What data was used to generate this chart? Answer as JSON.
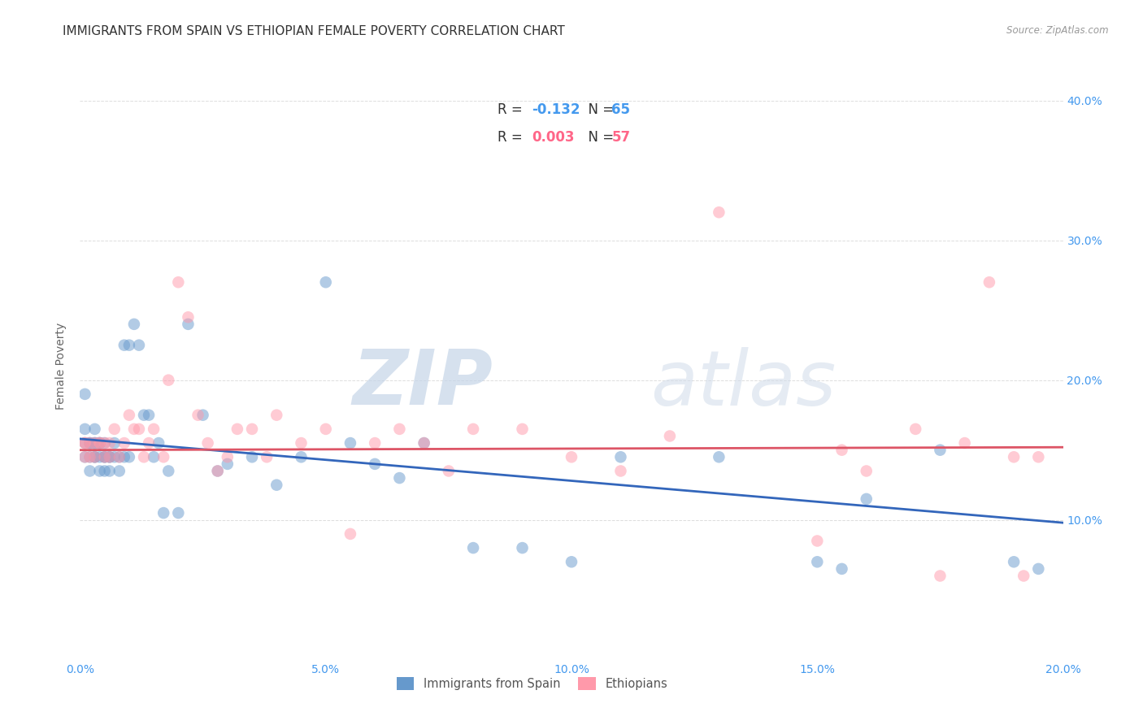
{
  "title": "IMMIGRANTS FROM SPAIN VS ETHIOPIAN FEMALE POVERTY CORRELATION CHART",
  "source": "Source: ZipAtlas.com",
  "ylabel": "Female Poverty",
  "xlim": [
    0.0,
    0.2
  ],
  "ylim": [
    0.0,
    0.42
  ],
  "xticks": [
    0.0,
    0.05,
    0.1,
    0.15,
    0.2
  ],
  "xtick_labels": [
    "0.0%",
    "5.0%",
    "10.0%",
    "15.0%",
    "20.0%"
  ],
  "yticks": [
    0.0,
    0.1,
    0.2,
    0.3,
    0.4
  ],
  "right_ytick_labels": [
    "",
    "10.0%",
    "20.0%",
    "30.0%",
    "40.0%"
  ],
  "blue_color": "#6699CC",
  "pink_color": "#FF99AA",
  "blue_line_color": "#3366BB",
  "pink_line_color": "#DD5566",
  "watermark_zip": "ZIP",
  "watermark_atlas": "atlas",
  "blue_scatter_x": [
    0.001,
    0.001,
    0.001,
    0.001,
    0.002,
    0.002,
    0.002,
    0.002,
    0.003,
    0.003,
    0.003,
    0.003,
    0.003,
    0.004,
    0.004,
    0.004,
    0.004,
    0.004,
    0.005,
    0.005,
    0.005,
    0.005,
    0.006,
    0.006,
    0.006,
    0.007,
    0.007,
    0.008,
    0.008,
    0.009,
    0.009,
    0.01,
    0.01,
    0.011,
    0.012,
    0.013,
    0.014,
    0.015,
    0.016,
    0.017,
    0.018,
    0.02,
    0.022,
    0.025,
    0.028,
    0.03,
    0.035,
    0.04,
    0.045,
    0.05,
    0.055,
    0.06,
    0.065,
    0.07,
    0.08,
    0.09,
    0.1,
    0.11,
    0.13,
    0.15,
    0.155,
    0.16,
    0.175,
    0.19,
    0.195
  ],
  "blue_scatter_y": [
    0.19,
    0.155,
    0.145,
    0.165,
    0.155,
    0.155,
    0.145,
    0.135,
    0.155,
    0.145,
    0.155,
    0.165,
    0.145,
    0.155,
    0.145,
    0.155,
    0.135,
    0.155,
    0.145,
    0.145,
    0.135,
    0.155,
    0.145,
    0.145,
    0.135,
    0.155,
    0.145,
    0.145,
    0.135,
    0.145,
    0.225,
    0.145,
    0.225,
    0.24,
    0.225,
    0.175,
    0.175,
    0.145,
    0.155,
    0.105,
    0.135,
    0.105,
    0.24,
    0.175,
    0.135,
    0.14,
    0.145,
    0.125,
    0.145,
    0.27,
    0.155,
    0.14,
    0.13,
    0.155,
    0.08,
    0.08,
    0.07,
    0.145,
    0.145,
    0.07,
    0.065,
    0.115,
    0.15,
    0.07,
    0.065
  ],
  "pink_scatter_x": [
    0.001,
    0.001,
    0.001,
    0.002,
    0.002,
    0.003,
    0.003,
    0.004,
    0.004,
    0.005,
    0.005,
    0.006,
    0.006,
    0.007,
    0.008,
    0.009,
    0.01,
    0.011,
    0.012,
    0.013,
    0.014,
    0.015,
    0.017,
    0.018,
    0.02,
    0.022,
    0.024,
    0.026,
    0.028,
    0.03,
    0.032,
    0.035,
    0.038,
    0.04,
    0.045,
    0.05,
    0.055,
    0.06,
    0.065,
    0.07,
    0.075,
    0.08,
    0.09,
    0.1,
    0.11,
    0.12,
    0.13,
    0.15,
    0.155,
    0.16,
    0.17,
    0.175,
    0.18,
    0.185,
    0.19,
    0.192,
    0.195
  ],
  "pink_scatter_y": [
    0.155,
    0.155,
    0.145,
    0.155,
    0.145,
    0.145,
    0.155,
    0.155,
    0.155,
    0.145,
    0.155,
    0.145,
    0.155,
    0.165,
    0.145,
    0.155,
    0.175,
    0.165,
    0.165,
    0.145,
    0.155,
    0.165,
    0.145,
    0.2,
    0.27,
    0.245,
    0.175,
    0.155,
    0.135,
    0.145,
    0.165,
    0.165,
    0.145,
    0.175,
    0.155,
    0.165,
    0.09,
    0.155,
    0.165,
    0.155,
    0.135,
    0.165,
    0.165,
    0.145,
    0.135,
    0.16,
    0.32,
    0.085,
    0.15,
    0.135,
    0.165,
    0.06,
    0.155,
    0.27,
    0.145,
    0.06,
    0.145
  ],
  "blue_trend_x": [
    0.0,
    0.2
  ],
  "blue_trend_y": [
    0.158,
    0.098
  ],
  "pink_trend_x": [
    0.0,
    0.2
  ],
  "pink_trend_y": [
    0.15,
    0.152
  ],
  "bg_color": "#ffffff",
  "grid_color": "#dddddd",
  "title_fontsize": 11,
  "marker_size": 110,
  "marker_alpha": 0.5,
  "line_width": 2.0
}
